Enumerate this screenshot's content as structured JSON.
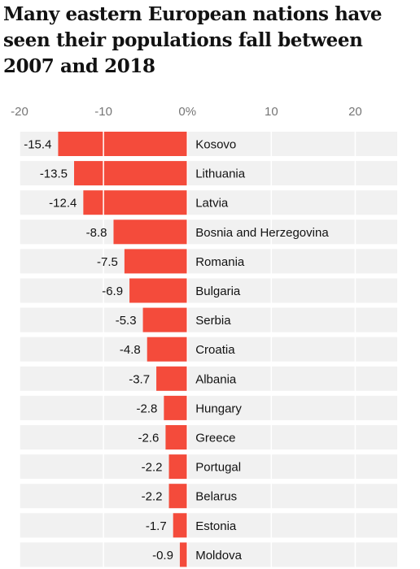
{
  "title": "Many eastern European nations have seen their populations fall between 2007 and 2018",
  "colors": {
    "bar": "#f44b3b",
    "row_band": "#f1f1f1",
    "grid": "#ffffff",
    "tick_text": "#767676",
    "text": "#121212"
  },
  "chart_data": {
    "type": "bar",
    "orientation": "horizontal",
    "title": "Many eastern European nations have seen their populations fall between 2007 and 2018",
    "xlim": [
      -20,
      25
    ],
    "x_ticks": [
      -20,
      -10,
      0,
      10,
      20
    ],
    "x_tick_labels": [
      "-20",
      "-10",
      "0%",
      "10",
      "20"
    ],
    "grid": true,
    "categories": [
      "Kosovo",
      "Lithuania",
      "Latvia",
      "Bosnia and Herzegovina",
      "Romania",
      "Bulgaria",
      "Serbia",
      "Croatia",
      "Albania",
      "Hungary",
      "Greece",
      "Portugal",
      "Belarus",
      "Estonia",
      "Moldova"
    ],
    "values": [
      -15.4,
      -13.5,
      -12.4,
      -8.8,
      -7.5,
      -6.9,
      -5.3,
      -4.8,
      -3.7,
      -2.8,
      -2.6,
      -2.2,
      -2.2,
      -1.7,
      -0.9
    ]
  }
}
